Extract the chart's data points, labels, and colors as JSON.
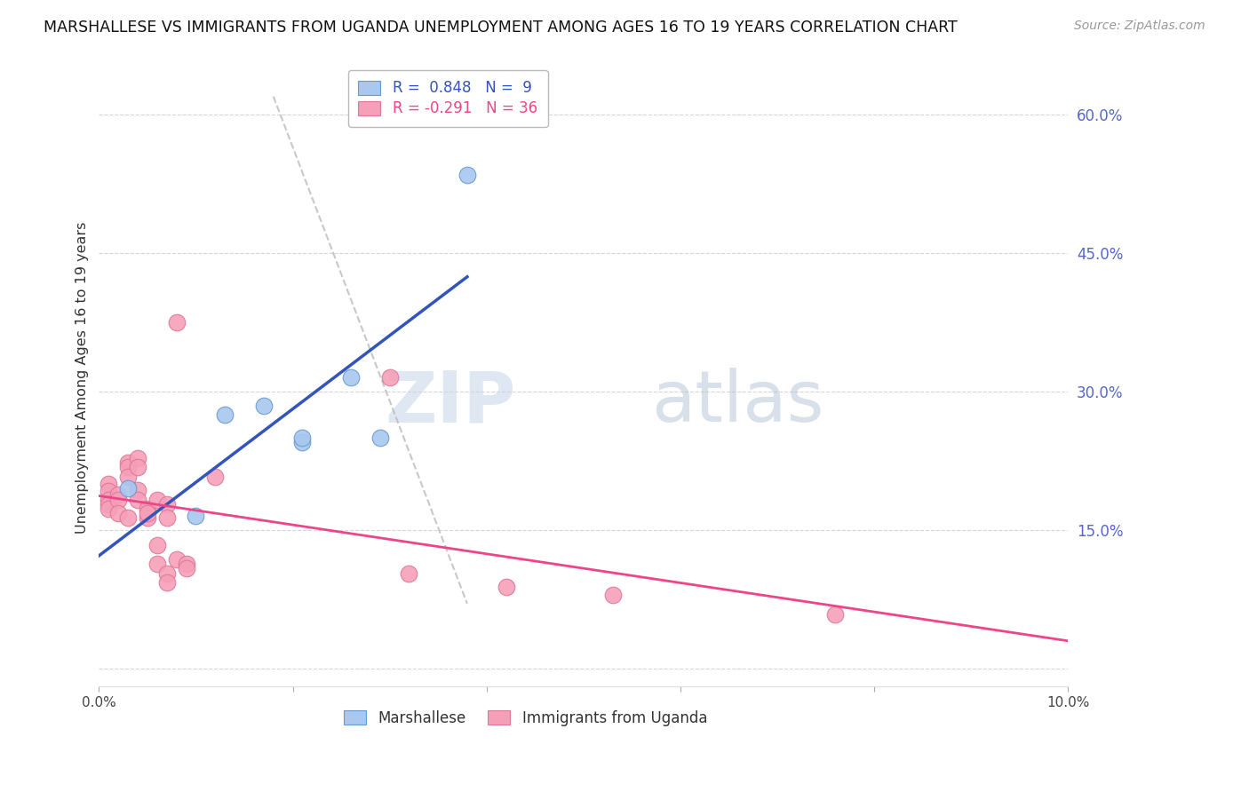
{
  "title": "MARSHALLESE VS IMMIGRANTS FROM UGANDA UNEMPLOYMENT AMONG AGES 16 TO 19 YEARS CORRELATION CHART",
  "source": "Source: ZipAtlas.com",
  "ylabel": "Unemployment Among Ages 16 to 19 years",
  "xlim": [
    0.0,
    0.1
  ],
  "ylim": [
    -0.02,
    0.65
  ],
  "right_yticks": [
    0.0,
    0.15,
    0.3,
    0.45,
    0.6
  ],
  "right_yticklabels": [
    "",
    "15.0%",
    "30.0%",
    "45.0%",
    "60.0%"
  ],
  "xticks": [
    0.0,
    0.02,
    0.04,
    0.06,
    0.08,
    0.1
  ],
  "xticklabels": [
    "0.0%",
    "",
    "",
    "",
    "",
    "10.0%"
  ],
  "marshallese_R": 0.848,
  "marshallese_N": 9,
  "uganda_R": -0.291,
  "uganda_N": 36,
  "marshallese_color": "#A8C8F0",
  "marshallese_edge": "#6699CC",
  "uganda_color": "#F5A0B8",
  "uganda_edge": "#DD7799",
  "blue_line_color": "#3355BB",
  "pink_line_color": "#EE4488",
  "dashed_line_color": "#BBBBBB",
  "watermark_zip": "ZIP",
  "watermark_atlas": "atlas",
  "marshallese_points": [
    [
      0.003,
      0.195
    ],
    [
      0.01,
      0.165
    ],
    [
      0.013,
      0.275
    ],
    [
      0.017,
      0.285
    ],
    [
      0.021,
      0.245
    ],
    [
      0.021,
      0.25
    ],
    [
      0.026,
      0.315
    ],
    [
      0.029,
      0.25
    ],
    [
      0.038,
      0.535
    ]
  ],
  "uganda_points": [
    [
      0.001,
      0.2
    ],
    [
      0.001,
      0.192
    ],
    [
      0.001,
      0.183
    ],
    [
      0.001,
      0.178
    ],
    [
      0.001,
      0.173
    ],
    [
      0.002,
      0.188
    ],
    [
      0.002,
      0.183
    ],
    [
      0.002,
      0.168
    ],
    [
      0.003,
      0.223
    ],
    [
      0.003,
      0.218
    ],
    [
      0.003,
      0.208
    ],
    [
      0.003,
      0.163
    ],
    [
      0.004,
      0.228
    ],
    [
      0.004,
      0.218
    ],
    [
      0.004,
      0.193
    ],
    [
      0.004,
      0.183
    ],
    [
      0.005,
      0.173
    ],
    [
      0.005,
      0.163
    ],
    [
      0.005,
      0.168
    ],
    [
      0.006,
      0.183
    ],
    [
      0.006,
      0.133
    ],
    [
      0.006,
      0.113
    ],
    [
      0.007,
      0.178
    ],
    [
      0.007,
      0.163
    ],
    [
      0.007,
      0.103
    ],
    [
      0.007,
      0.093
    ],
    [
      0.008,
      0.375
    ],
    [
      0.008,
      0.118
    ],
    [
      0.009,
      0.113
    ],
    [
      0.009,
      0.108
    ],
    [
      0.012,
      0.208
    ],
    [
      0.03,
      0.315
    ],
    [
      0.032,
      0.103
    ],
    [
      0.042,
      0.088
    ],
    [
      0.053,
      0.08
    ],
    [
      0.076,
      0.058
    ]
  ],
  "blue_line_x": [
    0.0,
    0.038
  ],
  "pink_line_x": [
    0.0,
    0.1
  ],
  "dashed_line": [
    [
      0.018,
      0.62
    ],
    [
      0.038,
      0.07
    ]
  ],
  "background_color": "#FFFFFF",
  "grid_color": "#CCCCCC"
}
